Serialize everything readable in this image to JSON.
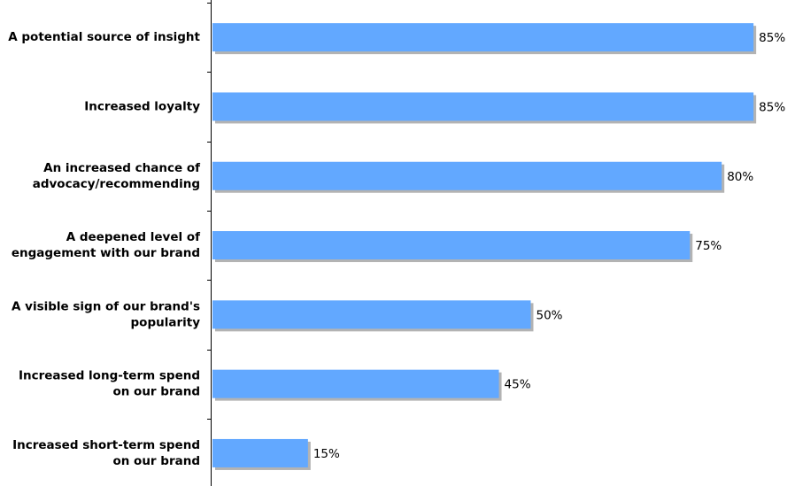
{
  "chart_data": {
    "type": "bar",
    "orientation": "horizontal",
    "categories": [
      "A potential source of insight",
      "Increased loyalty",
      "An increased chance of advocacy/recommending",
      "A deepened level of engagement with our brand",
      "A visible sign of our brand's popularity",
      "Increased long-term spend on our brand",
      "Increased short-term spend on our brand"
    ],
    "values": [
      85,
      85,
      80,
      75,
      50,
      45,
      15
    ],
    "value_labels": [
      "85%",
      "85%",
      "80%",
      "75%",
      "50%",
      "45%",
      "15%"
    ],
    "color": "#62a8ff"
  }
}
